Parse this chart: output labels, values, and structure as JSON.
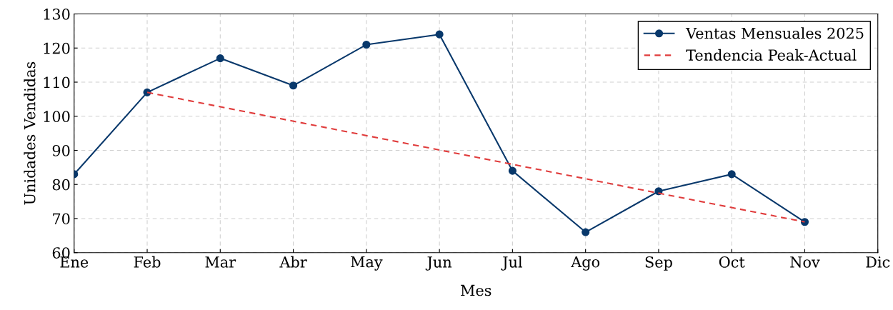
{
  "chart_data": {
    "type": "line",
    "xlabel": "Mes",
    "ylabel": "Unidades Vendidas",
    "categories": [
      "Ene",
      "Feb",
      "Mar",
      "Abr",
      "May",
      "Jun",
      "Jul",
      "Ago",
      "Sep",
      "Oct",
      "Nov",
      "Dic"
    ],
    "series": [
      {
        "name": "Ventas Mensuales 2025",
        "color": "#08386b",
        "marker": "circle",
        "line_style": "solid",
        "values": [
          83,
          107,
          117,
          109,
          121,
          124,
          84,
          66,
          78,
          83,
          69,
          null
        ]
      },
      {
        "name": "Tendencia Peak-Actual",
        "color": "#e03c3c",
        "marker": "none",
        "line_style": "dashed",
        "values": [
          null,
          107,
          null,
          null,
          null,
          null,
          null,
          null,
          null,
          null,
          69,
          null
        ]
      }
    ],
    "ylim": [
      60,
      130
    ],
    "yticks": [
      60,
      70,
      80,
      90,
      100,
      110,
      120,
      130
    ],
    "grid": true,
    "legend": "top right"
  }
}
